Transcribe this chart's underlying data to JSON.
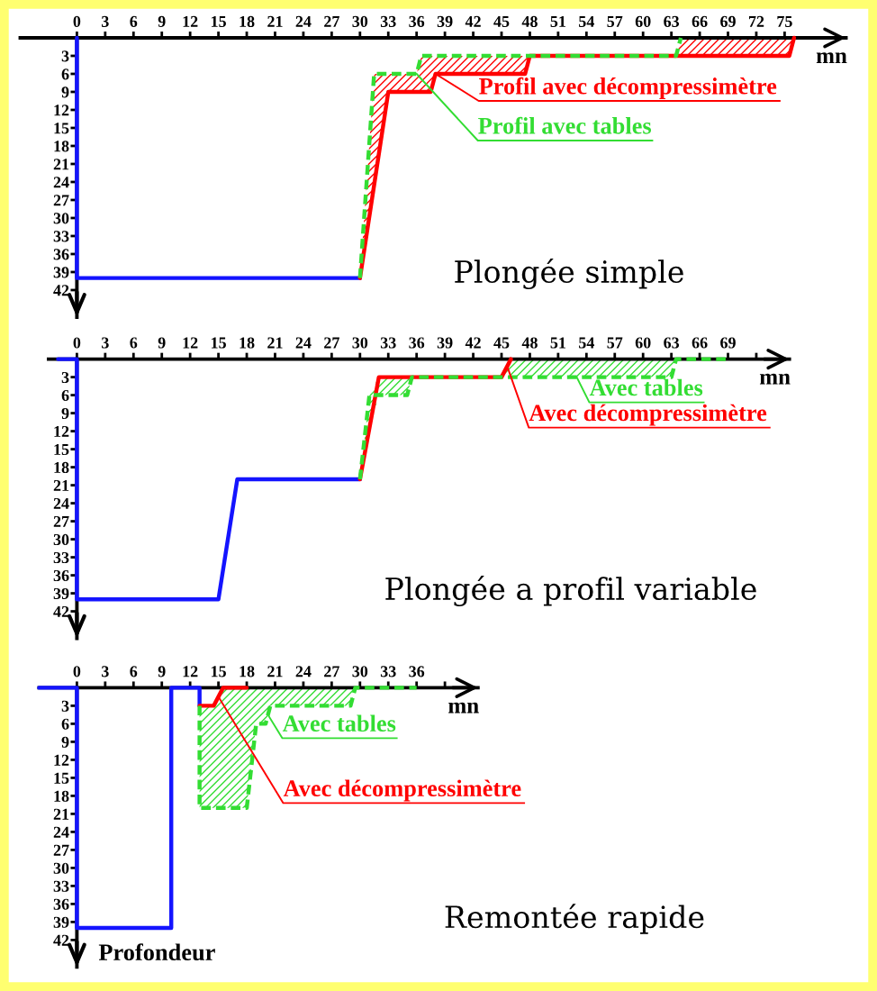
{
  "chart_data": [
    {
      "type": "line",
      "title": "Plongée simple",
      "xlabel": "mn",
      "xlim": [
        -6,
        81.5
      ],
      "ylim": [
        46.5,
        0
      ],
      "xticks": [
        0,
        3,
        6,
        9,
        12,
        15,
        18,
        21,
        24,
        27,
        30,
        33,
        36,
        39,
        42,
        45,
        48,
        51,
        54,
        57,
        60,
        63,
        66,
        69,
        72,
        75
      ],
      "yticks": [
        3,
        6,
        9,
        12,
        15,
        18,
        21,
        24,
        27,
        30,
        33,
        36,
        39,
        42
      ],
      "series": [
        {
          "color": "#1414ff",
          "line_style": "solid",
          "x": [
            0,
            0,
            30
          ],
          "values": [
            0,
            40,
            40
          ]
        },
        {
          "name": "Profil avec décompressimètre",
          "color": "#ff0000",
          "line_style": "solid",
          "x": [
            30,
            31.5,
            33,
            36,
            36.5,
            37.5,
            38,
            47.5,
            48,
            63.5,
            64,
            75.5,
            76
          ],
          "values": [
            40,
            24.5,
            9,
            9,
            9,
            9,
            6,
            6,
            3,
            3,
            3,
            3,
            0
          ],
          "lower": [
            40,
            6,
            6,
            6,
            3,
            3,
            3,
            3,
            3,
            3,
            0,
            0,
            0
          ],
          "upper": [
            40,
            24.5,
            9,
            9,
            9,
            9,
            6,
            6,
            3,
            3,
            3,
            3,
            0
          ]
        },
        {
          "name": "Profil avec tables",
          "color": "#33dd33",
          "line_style": "dashed",
          "x": [
            30,
            31.5,
            36,
            36.5,
            63.5,
            64
          ],
          "values": [
            40,
            6,
            6,
            3,
            3,
            0
          ]
        }
      ]
    },
    {
      "type": "line",
      "title": "Plongée a profil variable",
      "xlabel": "mn",
      "xlim": [
        -3,
        75.5
      ],
      "ylim": [
        46.5,
        0
      ],
      "xticks": [
        0,
        3,
        6,
        9,
        12,
        15,
        18,
        21,
        24,
        27,
        30,
        33,
        36,
        39,
        42,
        45,
        48,
        51,
        54,
        57,
        60,
        63,
        66,
        69,
        {
          "value": 72,
          "label": null
        }
      ],
      "yticks": [
        3,
        6,
        9,
        12,
        15,
        18,
        21,
        24,
        27,
        30,
        33,
        36,
        39,
        42
      ],
      "series": [
        {
          "color": "#1414ff",
          "line_style": "solid",
          "x": [
            -2,
            0,
            0,
            15,
            17,
            30
          ],
          "values": [
            0,
            0,
            40,
            40,
            20,
            20
          ]
        },
        {
          "name": "Avec décompressimètre",
          "color": "#ff0000",
          "line_style": "solid",
          "x": [
            30,
            32,
            45,
            46
          ],
          "values": [
            20,
            3,
            3,
            0
          ]
        },
        {
          "name": "Avec tables",
          "color": "#33dd33",
          "line_style": "dashed",
          "x": [
            30,
            31,
            32,
            35,
            35.5,
            45,
            46,
            63,
            63.5,
            69
          ],
          "values": [
            20,
            6,
            6,
            6,
            3,
            3,
            3,
            3,
            0,
            0
          ],
          "lower": [
            20,
            6,
            3,
            3,
            3,
            3,
            0,
            0,
            0,
            0
          ],
          "upper": [
            20,
            11.5,
            6,
            6,
            3,
            3,
            3,
            3,
            0,
            0
          ]
        }
      ]
    },
    {
      "type": "line",
      "title": "Remontée rapide",
      "xlabel": "mn",
      "ylabel": "Profondeur",
      "xlim": [
        -4,
        42.5
      ],
      "ylim": [
        46.5,
        0
      ],
      "xticks": [
        0,
        3,
        6,
        9,
        12,
        15,
        18,
        21,
        24,
        27,
        30,
        33,
        36,
        {
          "value": 39,
          "label": null
        }
      ],
      "yticks": [
        3,
        6,
        9,
        12,
        15,
        18,
        21,
        24,
        27,
        30,
        33,
        36,
        39,
        42
      ],
      "series": [
        {
          "color": "#1414ff",
          "line_style": "solid",
          "x": [
            -4,
            0,
            0,
            10,
            10,
            13,
            13
          ],
          "values": [
            0,
            0,
            40,
            40,
            0,
            0,
            3
          ]
        },
        {
          "name": "Avec décompressimètre",
          "color": "#ff0000",
          "line_style": "solid",
          "x": [
            13,
            14.5,
            15.5,
            18
          ],
          "values": [
            3,
            3,
            0,
            0
          ]
        },
        {
          "name": "Avec tables",
          "color": "#33dd33",
          "line_style": "dashed",
          "x": [
            13,
            13,
            14.5,
            15.5,
            18,
            19,
            20,
            20.5,
            29,
            29.5,
            36
          ],
          "values": [
            3,
            20,
            20,
            20,
            20,
            6,
            6,
            3,
            3,
            0,
            0
          ],
          "lower": [
            3,
            3,
            3,
            0,
            0,
            0,
            0,
            0,
            0,
            0,
            0
          ],
          "upper": [
            3,
            20,
            20,
            20,
            20,
            6,
            6,
            3,
            3,
            0,
            0
          ]
        }
      ]
    }
  ]
}
